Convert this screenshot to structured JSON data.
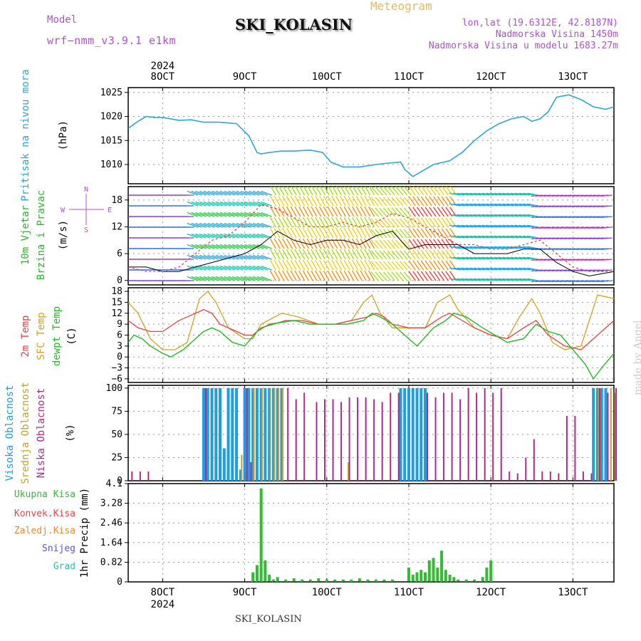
{
  "header": {
    "model_label": "Model",
    "model_value": "wrf−nmm_v3.9.1  e1km",
    "station": "SKI_KOLASIN",
    "product": "Meteogram",
    "lonlat": "lon,lat (19.6312E, 42.8187N)",
    "elevation": "Nadmorska Visina 1450m",
    "model_elevation": "Nadmorska Visina u modelu 1683.27m",
    "watermark": "made by Angel",
    "footer_station": "SKI_KOLASIN"
  },
  "colors": {
    "pressure": "#2aa6e0",
    "temp2m": "#e84040",
    "sfc_temp": "#d4a020",
    "dewpoint": "#22bb22",
    "high_cloud": "#1e9ee0",
    "mid_cloud": "#c8a02a",
    "low_cloud": "#b02a8a",
    "precip_total": "#33bb33",
    "precip_conv": "#ee4444",
    "freezing": "#ee8833",
    "snow": "#5555dd",
    "hail": "#33bbaa",
    "header_purple": "#b050d0",
    "header_orange": "#e8b860",
    "wind_label": "#22bb22",
    "legend_purple": "#b050d0"
  },
  "time_axis": {
    "year": "2024",
    "ticks": [
      {
        "day": 8,
        "label": "8OCT"
      },
      {
        "day": 9,
        "label": "9OCT"
      },
      {
        "day": 10,
        "label": "10OCT"
      },
      {
        "day": 11,
        "label": "11OCT"
      },
      {
        "day": 12,
        "label": "12OCT"
      },
      {
        "day": 13,
        "label": "13OCT"
      }
    ],
    "start_day": 7.58,
    "end_day": 13.5
  },
  "chart_data": [
    {
      "type": "line",
      "panel": "pressure",
      "ylabel": [
        "Pritisak na nivou mora",
        "(hPa)"
      ],
      "ylim": [
        1006,
        1026
      ],
      "yticks": [
        1010,
        1015,
        1020,
        1025
      ],
      "grid": true,
      "series": [
        {
          "x": [
            7.58,
            7.7,
            7.8,
            7.9,
            8.0,
            8.2,
            8.35,
            8.5,
            8.7,
            8.9,
            9.05,
            9.15,
            9.2,
            9.3,
            9.45,
            9.6,
            9.8,
            9.95,
            10.05,
            10.2,
            10.4,
            10.6,
            10.75,
            10.9,
            10.95,
            11.05,
            11.15,
            11.3,
            11.5,
            11.65,
            11.8,
            11.95,
            12.1,
            12.25,
            12.4,
            12.5,
            12.6,
            12.7,
            12.8,
            12.95,
            13.1,
            13.25,
            13.4,
            13.5
          ],
          "y": [
            1017.5,
            1019,
            1020,
            1019.8,
            1019.8,
            1019.2,
            1019.3,
            1018.8,
            1018.8,
            1018.5,
            1016,
            1012.5,
            1012.2,
            1012.5,
            1012.8,
            1012.8,
            1013,
            1012.5,
            1010.5,
            1009.5,
            1009.5,
            1010,
            1010.3,
            1010.5,
            1009,
            1007.5,
            1008.5,
            1010,
            1010.8,
            1012.5,
            1015,
            1017,
            1018.5,
            1019.5,
            1020,
            1019,
            1019.5,
            1021,
            1024,
            1024.5,
            1023.5,
            1022,
            1021.5,
            1022
          ]
        }
      ]
    },
    {
      "type": "line",
      "panel": "wind",
      "ylabel": [
        "10m Vjetar",
        "Brzina i Pravac",
        "(m/s)"
      ],
      "ylim": [
        -1,
        21
      ],
      "yticks": [
        0,
        6,
        12,
        18
      ],
      "grid": true,
      "compass": {
        "n": "N",
        "e": "E",
        "w": "W",
        "s": "S"
      },
      "series": [
        {
          "name": "speed",
          "x": [
            7.58,
            7.8,
            8.0,
            8.2,
            8.4,
            8.6,
            8.8,
            9.0,
            9.2,
            9.4,
            9.6,
            9.8,
            10.0,
            10.2,
            10.4,
            10.6,
            10.8,
            11.0,
            11.2,
            11.4,
            11.6,
            11.8,
            12.0,
            12.2,
            12.4,
            12.6,
            12.8,
            13.0,
            13.2,
            13.5
          ],
          "y": [
            3,
            3,
            2,
            2,
            3,
            4,
            5,
            6,
            8,
            11,
            9,
            8,
            9,
            9,
            8,
            10,
            11,
            7,
            8,
            8,
            8,
            6,
            6,
            6,
            7,
            7,
            4,
            2,
            1,
            2
          ]
        },
        {
          "name": "gust",
          "x": [
            7.58,
            7.8,
            8.0,
            8.2,
            8.4,
            8.6,
            8.8,
            9.0,
            9.2,
            9.4,
            9.6,
            9.8,
            10.0,
            10.2,
            10.4,
            10.6,
            10.8,
            11.0,
            11.2,
            11.4,
            11.6,
            11.8,
            12.0,
            12.2,
            12.4,
            12.6,
            12.8,
            13.0,
            13.2,
            13.5
          ],
          "y": [
            3,
            2,
            2,
            3,
            6,
            9,
            10,
            13,
            17,
            16,
            14,
            12,
            12,
            13,
            12,
            13,
            15,
            14,
            12,
            10,
            8,
            8,
            7,
            7,
            8,
            9,
            6,
            3,
            2,
            2
          ]
        }
      ]
    },
    {
      "type": "line",
      "panel": "temperature",
      "ylabel": [
        "2m Temp",
        "SFC Temp",
        "dewpt Temp",
        "(C)"
      ],
      "ylim": [
        -7,
        19
      ],
      "yticks": [
        -6,
        -3,
        0,
        3,
        6,
        9,
        12,
        15,
        18
      ],
      "grid": true,
      "series": [
        {
          "name": "2m Temp",
          "x": [
            7.58,
            7.7,
            7.85,
            8.0,
            8.2,
            8.4,
            8.5,
            8.6,
            8.7,
            8.9,
            9.0,
            9.1,
            9.2,
            9.5,
            9.7,
            9.9,
            10.1,
            10.3,
            10.5,
            10.6,
            10.7,
            10.8,
            11.0,
            11.2,
            11.4,
            11.5,
            11.65,
            11.8,
            12.0,
            12.2,
            12.4,
            12.55,
            12.7,
            12.9,
            13.1,
            13.3,
            13.5
          ],
          "y": [
            10,
            8,
            7,
            7,
            10,
            12,
            13,
            12,
            9,
            7,
            6,
            6,
            8,
            10,
            10,
            9,
            9,
            10,
            11,
            12,
            11,
            9,
            8,
            8,
            11,
            12,
            10,
            8,
            6,
            5,
            8,
            10,
            6,
            3,
            2,
            6,
            10
          ]
        },
        {
          "name": "SFC Temp",
          "x": [
            7.58,
            7.7,
            7.85,
            8.0,
            8.15,
            8.3,
            8.45,
            8.55,
            8.65,
            8.8,
            9.0,
            9.1,
            9.2,
            9.45,
            9.65,
            9.9,
            10.1,
            10.3,
            10.45,
            10.55,
            10.65,
            10.8,
            11.0,
            11.2,
            11.35,
            11.5,
            11.6,
            11.8,
            12.0,
            12.2,
            12.35,
            12.5,
            12.6,
            12.75,
            12.9,
            13.1,
            13.3,
            13.5
          ],
          "y": [
            15,
            12,
            5,
            2,
            2,
            4,
            16,
            18,
            15,
            8,
            5,
            5,
            9,
            12,
            11,
            9,
            9,
            10,
            15,
            17,
            12,
            8,
            8,
            8,
            15,
            17,
            13,
            8,
            6,
            5,
            11,
            16,
            12,
            4,
            2,
            3,
            17,
            16
          ]
        },
        {
          "name": "dewpt Temp",
          "x": [
            7.58,
            7.65,
            7.75,
            7.85,
            8.0,
            8.1,
            8.25,
            8.4,
            8.5,
            8.6,
            8.7,
            8.85,
            9.0,
            9.15,
            9.3,
            9.6,
            9.8,
            10.0,
            10.25,
            10.45,
            10.55,
            10.65,
            10.8,
            10.95,
            11.1,
            11.3,
            11.45,
            11.55,
            11.7,
            11.9,
            12.05,
            12.2,
            12.4,
            12.55,
            12.7,
            12.85,
            13.0,
            13.15,
            13.25,
            13.35,
            13.5
          ],
          "y": [
            4,
            6,
            5,
            3,
            1,
            0,
            2,
            5,
            7,
            8,
            7,
            4,
            3,
            7,
            9,
            10,
            9,
            9,
            9,
            10,
            12,
            11,
            9,
            6,
            3,
            8,
            10,
            12,
            11,
            8,
            6,
            4,
            5,
            9,
            7,
            6,
            2,
            -2,
            -6,
            -3,
            1
          ]
        }
      ]
    },
    {
      "type": "bar",
      "panel": "cloud",
      "ylabel": [
        "Visoka Oblacnost",
        "Srednja Oblacnost",
        "Niska Oblacnost",
        "(%)"
      ],
      "ylim": [
        0,
        103
      ],
      "yticks": [
        0,
        25,
        50,
        75,
        100
      ],
      "grid": true,
      "series": [
        {
          "name": "Visoka Oblacnost",
          "x": [
            8.5,
            8.55,
            8.6,
            8.65,
            8.7,
            8.75,
            8.8,
            8.85,
            8.9,
            8.95,
            9.0,
            9.05,
            9.1,
            9.15,
            9.2,
            9.25,
            9.3,
            9.35,
            9.4,
            9.45,
            10.9,
            10.95,
            11.0,
            11.05,
            11.1,
            11.15,
            11.2,
            13.25,
            13.3,
            13.35,
            13.4
          ],
          "y": [
            100,
            100,
            100,
            100,
            100,
            35,
            100,
            100,
            100,
            12,
            100,
            100,
            100,
            100,
            100,
            100,
            100,
            100,
            100,
            100,
            100,
            100,
            100,
            100,
            100,
            100,
            100,
            100,
            100,
            100,
            100
          ]
        },
        {
          "name": "Srednja Oblacnost",
          "x": [
            8.95,
            9.1,
            9.2,
            9.3,
            9.35,
            9.4,
            9.45,
            10.25,
            13.3,
            13.45,
            13.5
          ],
          "y": [
            28,
            100,
            100,
            100,
            100,
            100,
            100,
            20,
            100,
            100,
            95
          ]
        },
        {
          "name": "Niska Oblacnost",
          "x": [
            7.6,
            7.7,
            7.8,
            8.5,
            9.0,
            9.05,
            9.5,
            9.6,
            9.7,
            9.85,
            9.95,
            10.05,
            10.15,
            10.25,
            10.35,
            10.45,
            10.55,
            10.65,
            10.75,
            10.85,
            11.2,
            11.3,
            11.4,
            11.5,
            11.6,
            11.7,
            11.8,
            11.9,
            12.0,
            12.1,
            12.2,
            12.3,
            12.4,
            12.5,
            12.6,
            12.7,
            12.8,
            12.9,
            13.0,
            13.1,
            13.2,
            13.3,
            13.4,
            13.5
          ],
          "y": [
            10,
            10,
            10,
            100,
            100,
            20,
            100,
            88,
            95,
            85,
            88,
            88,
            85,
            90,
            90,
            90,
            88,
            85,
            95,
            95,
            95,
            90,
            95,
            95,
            88,
            100,
            95,
            100,
            95,
            100,
            10,
            8,
            25,
            45,
            10,
            10,
            8,
            70,
            70,
            10,
            8,
            100,
            95,
            100
          ]
        }
      ]
    },
    {
      "type": "bar",
      "panel": "precip",
      "ylabel": [
        "Ukupna Kisa",
        "Konvek.Kisa",
        "Zaledj.Kisa",
        "Snijeg",
        "Grad",
        "1hr Precip (mm)"
      ],
      "ylim": [
        0,
        4.1
      ],
      "yticks": [
        0,
        0.82,
        1.64,
        2.46,
        3.28,
        4.1
      ],
      "ytick_labels": [
        "0",
        "0.82",
        "1.64",
        "2.46",
        "3.28",
        "4.1"
      ],
      "grid": true,
      "series": [
        {
          "name": "Ukupna Kisa",
          "x": [
            9.1,
            9.15,
            9.2,
            9.25,
            9.3,
            9.35,
            9.4,
            9.5,
            9.6,
            9.7,
            9.8,
            9.9,
            10.0,
            10.1,
            10.2,
            10.3,
            10.4,
            10.5,
            10.6,
            10.7,
            10.8,
            11.0,
            11.05,
            11.1,
            11.15,
            11.2,
            11.25,
            11.3,
            11.35,
            11.4,
            11.45,
            11.5,
            11.55,
            11.6,
            11.7,
            11.8,
            11.9,
            11.95,
            12.0
          ],
          "y": [
            0.4,
            0.7,
            3.9,
            0.9,
            0.3,
            0.1,
            0.2,
            0.1,
            0.15,
            0.1,
            0.1,
            0.15,
            0.1,
            0.1,
            0.1,
            0.1,
            0.15,
            0.1,
            0.1,
            0.1,
            0.1,
            0.6,
            0.3,
            0.4,
            0.5,
            0.4,
            0.9,
            1.0,
            0.6,
            1.3,
            0.5,
            0.3,
            0.2,
            0.1,
            0.1,
            0.1,
            0.2,
            0.6,
            0.9
          ]
        }
      ]
    }
  ]
}
